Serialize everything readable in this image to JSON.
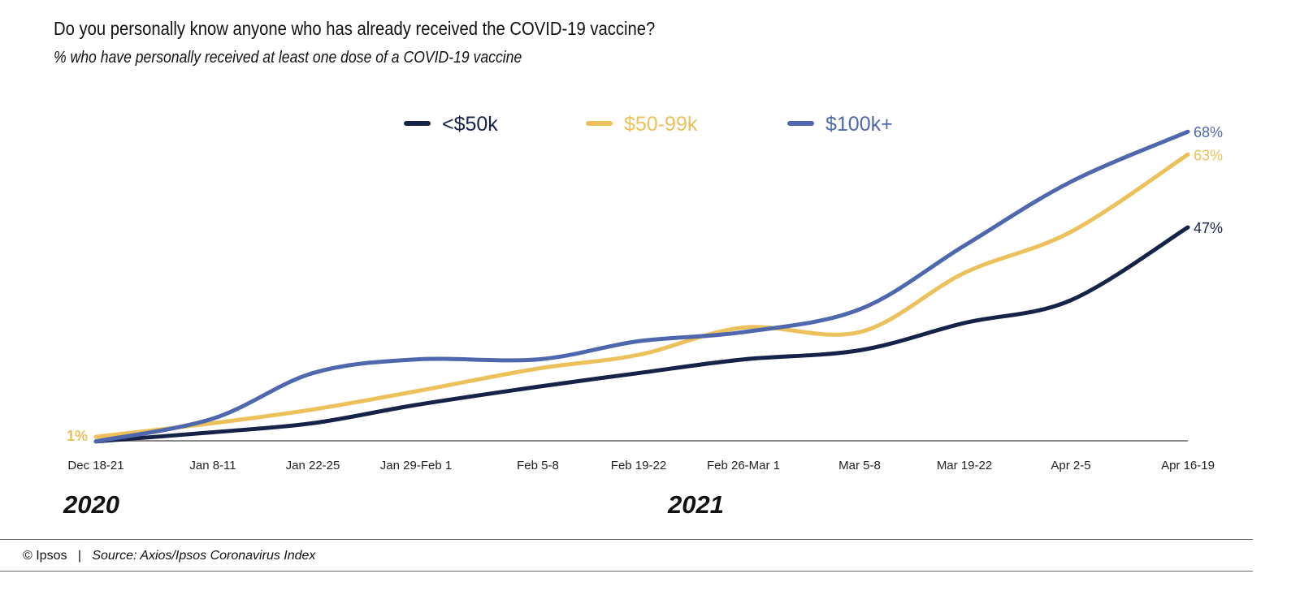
{
  "title": "Do you personally know anyone who has already received the COVID-19 vaccine?",
  "subtitle": "% who have personally received at least one dose of a COVID-19 vaccine",
  "years": [
    "2020",
    "2021"
  ],
  "footer": {
    "copyright": "© Ipsos",
    "separator": "|",
    "source": "Source: Axios/Ipsos Coronavirus Index"
  },
  "chart_data": {
    "type": "line",
    "categories": [
      "Dec 18-21",
      "Jan 8-11",
      "Jan 22-25",
      "Jan 29-Feb 1",
      "Feb 5-8",
      "Feb 19-22",
      "Feb 26-Mar 1",
      "Mar 5-8",
      "Mar 19-22",
      "Apr 2-5",
      "Apr 16-19"
    ],
    "ylim": [
      0,
      70
    ],
    "grid": false,
    "legend": "top-center",
    "series": [
      {
        "name": "<$50k",
        "color": "#172249",
        "values": [
          0,
          2,
          4,
          8,
          12,
          15,
          18,
          20,
          26,
          31,
          47
        ],
        "end_label": "47%"
      },
      {
        "name": "$50-99k",
        "color": "#ecc05a",
        "values": [
          1,
          4,
          7,
          11,
          16,
          19,
          25,
          24,
          37,
          46,
          63
        ],
        "start_label": "1%",
        "end_label": "63%"
      },
      {
        "name": "$100k+",
        "color": "#4e67ad",
        "values": [
          0,
          5,
          15,
          18,
          18,
          22,
          24,
          29,
          43,
          57,
          68
        ],
        "end_label": "68%"
      }
    ]
  }
}
